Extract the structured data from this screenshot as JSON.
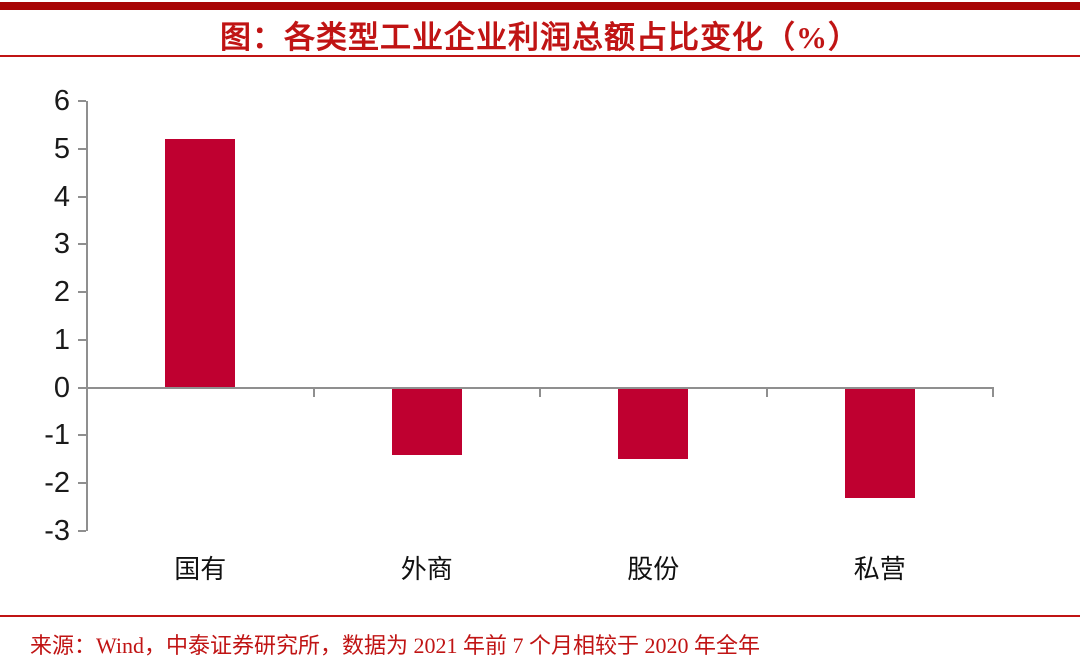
{
  "header": {
    "title": "图：各类型工业企业利润总额占比变化（%）"
  },
  "footer": {
    "source": "来源：Wind，中泰证券研究所，数据为 2021 年前 7 个月相较于 2020 年全年"
  },
  "colors": {
    "accent_red": "#C01414",
    "top_band": "#A80505",
    "bar_fill": "#BF0030",
    "axis_gray": "#8F8F8F",
    "y_tick_text": "#1A1A1A",
    "category_text": "#111111"
  },
  "chart_data": {
    "type": "bar",
    "categories": [
      "国有",
      "外商",
      "股份",
      "私营"
    ],
    "values": [
      5.2,
      -1.4,
      -1.5,
      -2.3
    ],
    "title": "图：各类型工业企业利润总额占比变化（%）",
    "xlabel": "",
    "ylabel": "",
    "ylim": [
      -3,
      6
    ],
    "ytick_step": 1,
    "yticks": [
      -3,
      -2,
      -1,
      0,
      1,
      2,
      3,
      4,
      5,
      6
    ],
    "grid": false,
    "legend": "none",
    "bar_color": "#BF0030"
  }
}
